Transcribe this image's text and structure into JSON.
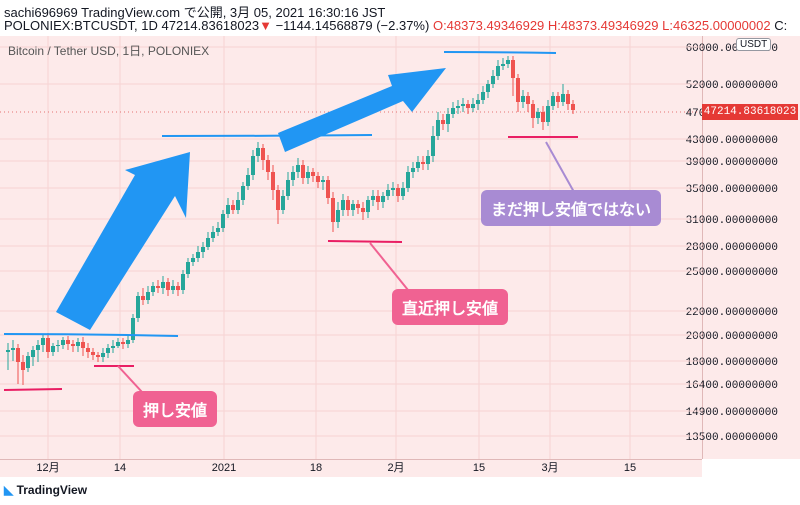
{
  "header": {
    "line1": "sachi696969 TradingView.com で公開, 3月 05, 2021 16:30:16 JST",
    "symbol": "POLONIEX:BTCUSDT, 1D 47214.83618023",
    "change": "−1144.14568879 (−2.37%)",
    "ohlc_o": "O:48373.49346929",
    "ohlc_h": "H:48373.49346929",
    "ohlc_l": "L:46325.00000002",
    "ohlc_c": "C:"
  },
  "chart_title": "Bitcoin / Tether USD, 1日, POLONIEX",
  "currency_button": "USDT",
  "last_price": "47214.83618023",
  "footer": {
    "brand": "TradingView"
  },
  "annotations": {
    "recent_dip": "直近押し安値",
    "dip": "押し安値",
    "not_yet": "まだ押し安値ではない"
  },
  "colors": {
    "up": "#26a69a",
    "down": "#ef5350",
    "background": "#fdeaea",
    "arrow": "#2196f3",
    "pink_label": "#f06292",
    "purple_label": "#a88bd3"
  },
  "chart_data": {
    "type": "candlestick",
    "y_ticks": [
      "60000.00000000",
      "52000.00000000",
      "47000.00000000",
      "43000.00000000",
      "39000.00000000",
      "35000.00000000",
      "31000.00000000",
      "28000.00000000",
      "25000.00000000",
      "22000.00000000",
      "20000.00000000",
      "18000.00000000",
      "16400.00000000",
      "14900.00000000",
      "13500.00000000"
    ],
    "x_ticks": [
      "12月",
      "14",
      "2021",
      "18",
      "2月",
      "15",
      "3月",
      "15"
    ],
    "scale": "log"
  }
}
